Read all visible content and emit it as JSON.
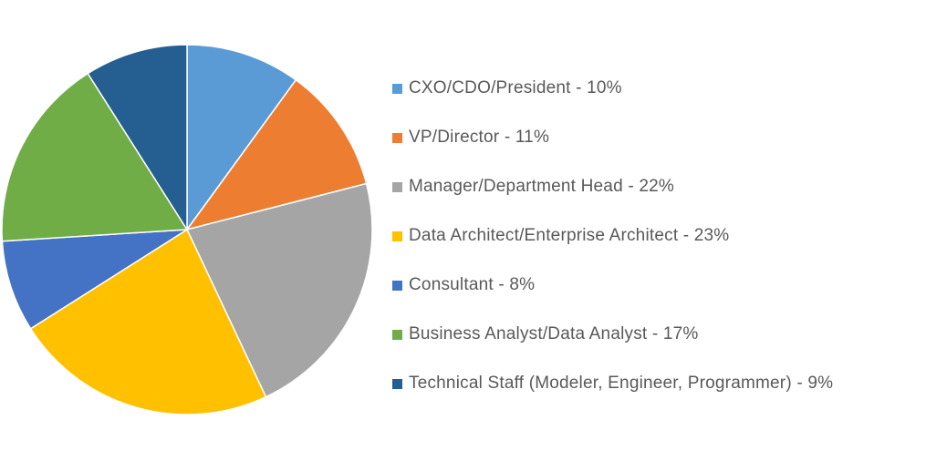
{
  "chart_data": {
    "type": "pie",
    "title": "",
    "start_angle_deg": 0,
    "direction": "clockwise",
    "legend_position": "right",
    "slices": [
      {
        "label": "CXO/CDO/President - 10%",
        "value": 10,
        "color": "#5B9BD5"
      },
      {
        "label": "VP/Director - 11%",
        "value": 11,
        "color": "#ED7D31"
      },
      {
        "label": "Manager/Department Head - 22%",
        "value": 22,
        "color": "#A5A5A5"
      },
      {
        "label": "Data Architect/Enterprise Architect - 23%",
        "value": 23,
        "color": "#FFC000"
      },
      {
        "label": "Consultant - 8%",
        "value": 8,
        "color": "#4472C4"
      },
      {
        "label": "Business Analyst/Data Analyst - 17%",
        "value": 17,
        "color": "#70AD47"
      },
      {
        "label": "Technical Staff (Modeler, Engineer, Programmer) - 9%",
        "value": 9,
        "color": "#255E91"
      }
    ]
  }
}
